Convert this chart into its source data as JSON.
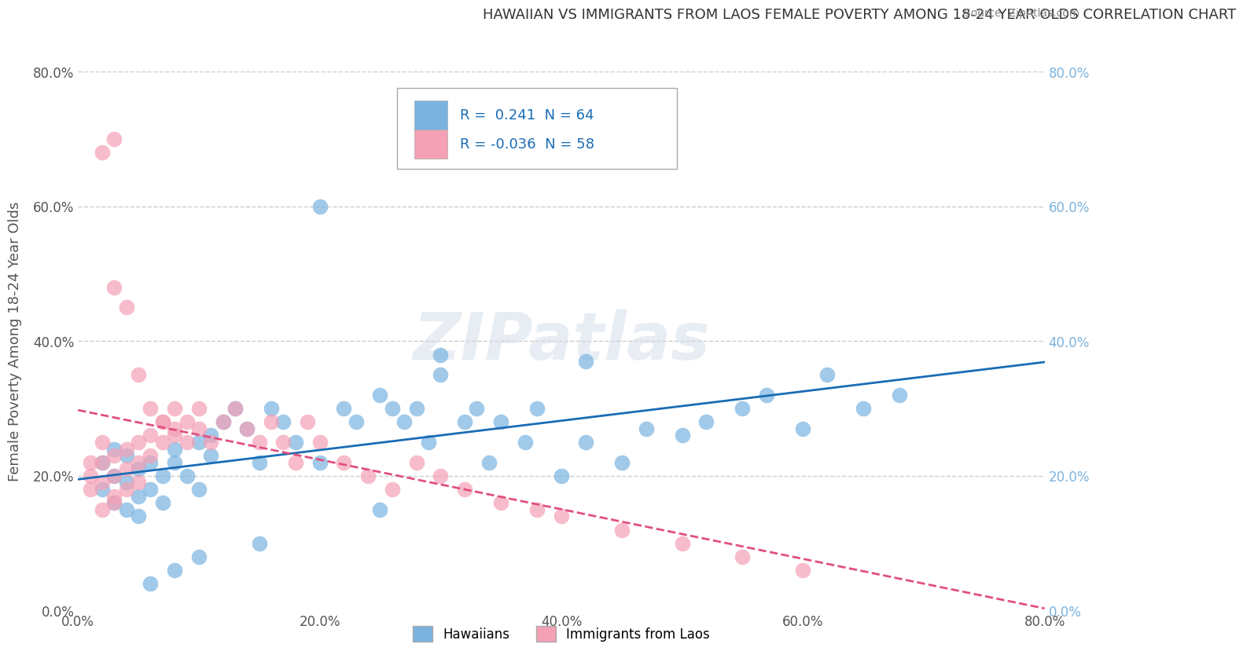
{
  "title": "HAWAIIAN VS IMMIGRANTS FROM LAOS FEMALE POVERTY AMONG 18-24 YEAR OLDS CORRELATION CHART",
  "source": "Source: ZipAtlas.com",
  "ylabel": "Female Poverty Among 18-24 Year Olds",
  "xlabel": "",
  "xlim": [
    0.0,
    0.8
  ],
  "ylim": [
    0.0,
    0.8
  ],
  "xticks": [
    0.0,
    0.2,
    0.4,
    0.6,
    0.8
  ],
  "yticks": [
    0.0,
    0.2,
    0.4,
    0.6,
    0.8
  ],
  "xticklabels": [
    "0.0%",
    "20.0%",
    "40.0%",
    "60.0%",
    "80.0%"
  ],
  "yticklabels": [
    "0.0%",
    "20.0%",
    "40.0%",
    "60.0%",
    "80.0%"
  ],
  "hawaiian_color": "#7ab3e0",
  "laos_color": "#f4a0b5",
  "hawaiian_R": 0.241,
  "hawaiian_N": 64,
  "laos_R": -0.036,
  "laos_N": 58,
  "legend_entries": [
    "Hawaiians",
    "Immigrants from Laos"
  ],
  "watermark": "ZIPatlas",
  "hawaiian_x": [
    0.02,
    0.02,
    0.03,
    0.03,
    0.03,
    0.04,
    0.04,
    0.04,
    0.05,
    0.05,
    0.05,
    0.06,
    0.06,
    0.07,
    0.07,
    0.08,
    0.08,
    0.09,
    0.1,
    0.1,
    0.11,
    0.11,
    0.12,
    0.13,
    0.14,
    0.15,
    0.16,
    0.17,
    0.18,
    0.2,
    0.22,
    0.23,
    0.25,
    0.26,
    0.27,
    0.28,
    0.29,
    0.3,
    0.32,
    0.33,
    0.34,
    0.35,
    0.37,
    0.38,
    0.4,
    0.42,
    0.45,
    0.47,
    0.5,
    0.52,
    0.55,
    0.57,
    0.6,
    0.62,
    0.65,
    0.68,
    0.42,
    0.2,
    0.3,
    0.25,
    0.15,
    0.1,
    0.08,
    0.06
  ],
  "hawaiian_y": [
    0.18,
    0.22,
    0.2,
    0.24,
    0.16,
    0.19,
    0.23,
    0.15,
    0.21,
    0.17,
    0.14,
    0.22,
    0.18,
    0.2,
    0.16,
    0.24,
    0.22,
    0.2,
    0.25,
    0.18,
    0.26,
    0.23,
    0.28,
    0.3,
    0.27,
    0.22,
    0.3,
    0.28,
    0.25,
    0.22,
    0.3,
    0.28,
    0.32,
    0.3,
    0.28,
    0.3,
    0.25,
    0.35,
    0.28,
    0.3,
    0.22,
    0.28,
    0.25,
    0.3,
    0.2,
    0.25,
    0.22,
    0.27,
    0.26,
    0.28,
    0.3,
    0.32,
    0.27,
    0.35,
    0.3,
    0.32,
    0.37,
    0.6,
    0.38,
    0.15,
    0.1,
    0.08,
    0.06,
    0.04
  ],
  "laos_x": [
    0.01,
    0.01,
    0.01,
    0.02,
    0.02,
    0.02,
    0.02,
    0.03,
    0.03,
    0.03,
    0.03,
    0.04,
    0.04,
    0.04,
    0.05,
    0.05,
    0.05,
    0.06,
    0.06,
    0.07,
    0.07,
    0.08,
    0.08,
    0.09,
    0.09,
    0.1,
    0.1,
    0.11,
    0.12,
    0.13,
    0.14,
    0.15,
    0.16,
    0.17,
    0.18,
    0.19,
    0.2,
    0.22,
    0.24,
    0.26,
    0.28,
    0.3,
    0.32,
    0.35,
    0.38,
    0.4,
    0.45,
    0.5,
    0.55,
    0.6,
    0.02,
    0.03,
    0.03,
    0.04,
    0.05,
    0.06,
    0.07,
    0.08
  ],
  "laos_y": [
    0.2,
    0.22,
    0.18,
    0.25,
    0.22,
    0.19,
    0.15,
    0.23,
    0.2,
    0.17,
    0.16,
    0.24,
    0.21,
    0.18,
    0.25,
    0.22,
    0.19,
    0.26,
    0.23,
    0.28,
    0.25,
    0.3,
    0.27,
    0.28,
    0.25,
    0.3,
    0.27,
    0.25,
    0.28,
    0.3,
    0.27,
    0.25,
    0.28,
    0.25,
    0.22,
    0.28,
    0.25,
    0.22,
    0.2,
    0.18,
    0.22,
    0.2,
    0.18,
    0.16,
    0.15,
    0.14,
    0.12,
    0.1,
    0.08,
    0.06,
    0.68,
    0.48,
    0.7,
    0.45,
    0.35,
    0.3,
    0.28,
    0.26
  ]
}
